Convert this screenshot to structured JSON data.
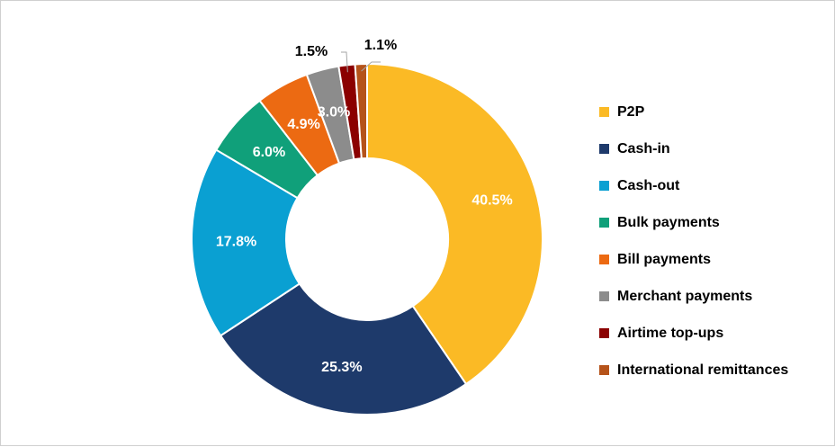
{
  "chart_data": {
    "type": "pie",
    "variant": "donut",
    "categories": [
      "P2P",
      "Cash-in",
      "Cash-out",
      "Bulk payments",
      "Bill payments",
      "Merchant payments",
      "Airtime top-ups",
      "International remittances"
    ],
    "values": [
      40.5,
      25.3,
      17.8,
      6.0,
      4.9,
      3.0,
      1.5,
      1.1
    ],
    "labels": [
      "40.5%",
      "25.3%",
      "17.8%",
      "6.0%",
      "4.9%",
      "3.0%",
      "1.5%",
      "1.1%"
    ],
    "colors": [
      "#FBBA25",
      "#1E3A6B",
      "#0AA0D2",
      "#10A07A",
      "#EC6A12",
      "#8C8C8C",
      "#8B0000",
      "#B5531A"
    ],
    "title": "",
    "legend_position": "right"
  }
}
